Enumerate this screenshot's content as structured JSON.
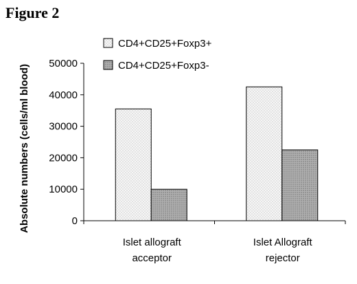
{
  "figure": {
    "title": "Figure 2"
  },
  "chart_data": {
    "type": "bar",
    "title": "",
    "xlabel": "",
    "ylabel": "Absolute numbers (cells/ml blood)",
    "ylim": [
      0,
      50000
    ],
    "yticks": [
      "0",
      "10000",
      "20000",
      "30000",
      "40000",
      "50000"
    ],
    "categories": [
      [
        "Islet allograft",
        "acceptor"
      ],
      [
        "Islet Allograft",
        "rejector"
      ]
    ],
    "series": [
      {
        "name": "CD4+CD25+Foxp3+",
        "values": [
          35500,
          42500
        ],
        "fill": "#f4f4f4",
        "pattern": "dots"
      },
      {
        "name": "CD4+CD25+Foxp3-",
        "values": [
          10000,
          22500
        ],
        "fill": "#a6a6a6",
        "pattern": "dots-dark"
      }
    ],
    "legend_position": "top",
    "grid": false
  }
}
